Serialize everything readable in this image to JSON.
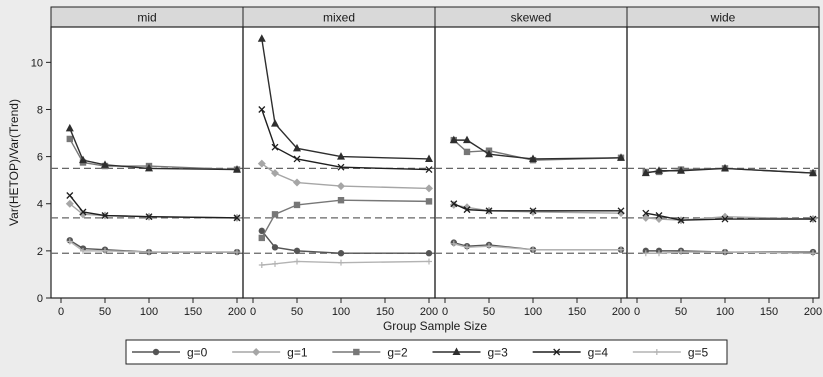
{
  "chart_data": {
    "type": "line",
    "xlabel": "Group Sample Size",
    "ylabel": "Var(HETOP)/Var(Trend)",
    "xlim": [
      0,
      200
    ],
    "ylim": [
      0,
      11
    ],
    "xticks": [
      0,
      50,
      100,
      150,
      200
    ],
    "yticks": [
      0,
      2,
      4,
      6,
      8,
      10
    ],
    "x": [
      10,
      25,
      50,
      100,
      200
    ],
    "reference_lines": [
      5.5,
      3.4,
      1.9
    ],
    "grid": false,
    "legend_position": "bottom",
    "panels": [
      {
        "label": "mid",
        "series": [
          {
            "name": "g=0",
            "values": [
              2.45,
              2.1,
              2.05,
              1.95,
              1.95
            ]
          },
          {
            "name": "g=1",
            "values": [
              4.0,
              3.55,
              3.5,
              3.45,
              3.4
            ]
          },
          {
            "name": "g=2",
            "values": [
              6.75,
              5.75,
              5.6,
              5.6,
              5.45
            ]
          },
          {
            "name": "g=3",
            "values": [
              7.2,
              5.85,
              5.65,
              5.5,
              5.45
            ]
          },
          {
            "name": "g=4",
            "values": [
              4.35,
              3.65,
              3.5,
              3.45,
              3.4
            ]
          },
          {
            "name": "g=5",
            "values": [
              2.4,
              2.0,
              2.0,
              1.95,
              1.95
            ]
          }
        ]
      },
      {
        "label": "mixed",
        "series": [
          {
            "name": "g=0",
            "values": [
              2.85,
              2.15,
              2.0,
              1.9,
              1.9
            ]
          },
          {
            "name": "g=1",
            "values": [
              5.7,
              5.3,
              4.9,
              4.75,
              4.65
            ]
          },
          {
            "name": "g=2",
            "values": [
              2.55,
              3.55,
              3.95,
              4.15,
              4.1
            ]
          },
          {
            "name": "g=3",
            "values": [
              11.0,
              7.4,
              6.35,
              6.0,
              5.9
            ]
          },
          {
            "name": "g=4",
            "values": [
              8.0,
              6.4,
              5.9,
              5.55,
              5.45
            ]
          },
          {
            "name": "g=5",
            "values": [
              1.4,
              1.45,
              1.55,
              1.5,
              1.55
            ]
          }
        ]
      },
      {
        "label": "skewed",
        "series": [
          {
            "name": "g=0",
            "values": [
              2.35,
              2.2,
              2.25,
              2.05,
              2.05
            ]
          },
          {
            "name": "g=1",
            "values": [
              3.95,
              3.85,
              3.7,
              3.65,
              3.6
            ]
          },
          {
            "name": "g=2",
            "values": [
              6.7,
              6.2,
              6.25,
              5.85,
              5.95
            ]
          },
          {
            "name": "g=3",
            "values": [
              6.7,
              6.7,
              6.1,
              5.9,
              5.95
            ]
          },
          {
            "name": "g=4",
            "values": [
              4.0,
              3.75,
              3.7,
              3.7,
              3.7
            ]
          },
          {
            "name": "g=5",
            "values": [
              2.3,
              2.15,
              2.2,
              2.05,
              2.05
            ]
          }
        ]
      },
      {
        "label": "wide",
        "series": [
          {
            "name": "g=0",
            "values": [
              2.0,
              2.0,
              2.0,
              1.95,
              1.95
            ]
          },
          {
            "name": "g=1",
            "values": [
              3.4,
              3.35,
              3.3,
              3.45,
              3.35
            ]
          },
          {
            "name": "g=2",
            "values": [
              5.35,
              5.35,
              5.45,
              5.5,
              5.3
            ]
          },
          {
            "name": "g=3",
            "values": [
              5.3,
              5.4,
              5.4,
              5.5,
              5.3
            ]
          },
          {
            "name": "g=4",
            "values": [
              3.6,
              3.5,
              3.3,
              3.35,
              3.35
            ]
          },
          {
            "name": "g=5",
            "values": [
              1.9,
              1.9,
              1.95,
              1.95,
              1.9
            ]
          }
        ]
      }
    ],
    "legend": [
      "g=0",
      "g=1",
      "g=2",
      "g=3",
      "g=4",
      "g=5"
    ],
    "series_styles": [
      {
        "color": "#555555",
        "marker": "circle"
      },
      {
        "color": "#a6a6a6",
        "marker": "diamond"
      },
      {
        "color": "#777777",
        "marker": "square"
      },
      {
        "color": "#2e2e2e",
        "marker": "triangle"
      },
      {
        "color": "#1f1f1f",
        "marker": "x"
      },
      {
        "color": "#b3b3b3",
        "marker": "plus"
      }
    ]
  }
}
